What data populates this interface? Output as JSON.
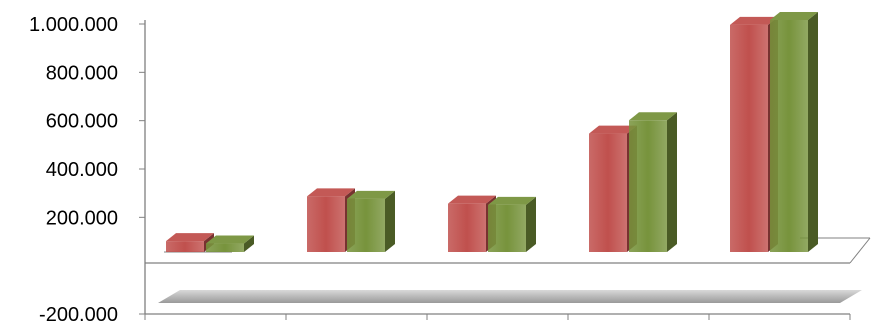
{
  "chart_data": {
    "type": "bar",
    "categories": [
      "",
      "",
      "",
      "",
      ""
    ],
    "series": [
      {
        "color": "#c0504d",
        "values": [
          45000,
          230000,
          200000,
          490000,
          940000
        ]
      },
      {
        "color": "#77933c",
        "values": [
          35000,
          220000,
          195000,
          545000,
          960000
        ]
      }
    ],
    "ylim": [
      -200000,
      1000000
    ],
    "yticks": [
      -200000,
      200000,
      400000,
      600000,
      800000,
      1000000
    ],
    "ytick_labels": [
      "-200.000",
      "200.000",
      "400.000",
      "600.000",
      "800.000",
      "1.000.000"
    ],
    "title": "",
    "xlabel": "",
    "ylabel": "",
    "three_d": true,
    "grid": false,
    "legend": "none"
  }
}
